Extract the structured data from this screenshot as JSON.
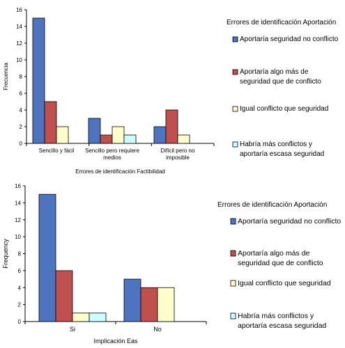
{
  "legend_title": "Errores de identificación Aportación",
  "colors": {
    "series_1": "#4e74c0",
    "series_2": "#c0504d",
    "series_3": "#ffffcc",
    "series_4": "#ccffff",
    "bar_stroke": "#000000"
  },
  "chart_data": [
    {
      "type": "bar",
      "title": "",
      "xlabel": "Errores de identificación Factibilidad",
      "ylabel": "Frecuencia",
      "ylim": [
        0,
        16
      ],
      "yticks": [
        0,
        2,
        4,
        6,
        8,
        10,
        12,
        14,
        16
      ],
      "grid": false,
      "legend_position": "right",
      "legend_title": "Errores de identificación Aportación",
      "categories": [
        [
          "Sencillo y fácil"
        ],
        [
          "Sencillo pero requiere",
          "medios"
        ],
        [
          "Difícil pero no",
          "imposible"
        ]
      ],
      "series": [
        {
          "name": [
            "Aportaría seguridad no conflicto"
          ],
          "values": [
            15,
            3,
            2
          ]
        },
        {
          "name": [
            "Aportaría algo más de",
            "seguridad que de conflicto"
          ],
          "values": [
            5,
            1,
            4
          ]
        },
        {
          "name": [
            "Igual conflicto que seguridad"
          ],
          "values": [
            2,
            2,
            1
          ]
        },
        {
          "name": [
            "Habría más conflictos y",
            "aportaría escasa seguridad"
          ],
          "values": [
            0,
            1,
            0
          ]
        }
      ]
    },
    {
      "type": "bar",
      "title": "",
      "xlabel": "Implicación Eas",
      "ylabel": "Frequency",
      "ylim": [
        0,
        16
      ],
      "yticks": [
        0,
        2,
        4,
        6,
        8,
        10,
        12,
        14,
        16
      ],
      "grid": false,
      "legend_position": "right",
      "legend_title": "Errores de identificación Aportación",
      "categories": [
        [
          "Si"
        ],
        [
          "No"
        ]
      ],
      "series": [
        {
          "name": [
            "Aportaría seguridad no conflicto"
          ],
          "values": [
            15,
            5
          ]
        },
        {
          "name": [
            "Aportaría algo más de",
            "seguridad que de conflicto"
          ],
          "values": [
            6,
            4
          ]
        },
        {
          "name": [
            "Igual conflicto que seguridad"
          ],
          "values": [
            1,
            4
          ]
        },
        {
          "name": [
            "Habría más conflictos y",
            "aportaría escasa seguridad"
          ],
          "values": [
            1,
            0
          ]
        }
      ]
    }
  ]
}
